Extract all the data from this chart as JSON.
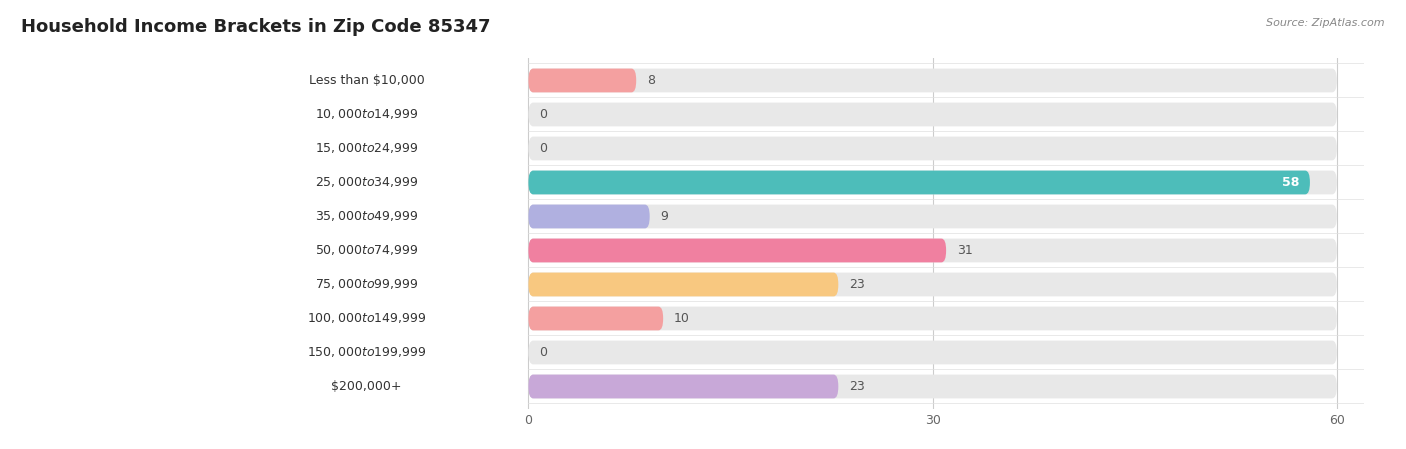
{
  "title": "Household Income Brackets in Zip Code 85347",
  "source": "Source: ZipAtlas.com",
  "categories": [
    "Less than $10,000",
    "$10,000 to $14,999",
    "$15,000 to $24,999",
    "$25,000 to $34,999",
    "$35,000 to $49,999",
    "$50,000 to $74,999",
    "$75,000 to $99,999",
    "$100,000 to $149,999",
    "$150,000 to $199,999",
    "$200,000+"
  ],
  "values": [
    8,
    0,
    0,
    58,
    9,
    31,
    23,
    10,
    0,
    23
  ],
  "bar_colors": [
    "#F4A0A0",
    "#A8C4E0",
    "#C8A8D8",
    "#4DBDBA",
    "#B0B0E0",
    "#F080A0",
    "#F8C880",
    "#F4A0A0",
    "#A8C4E0",
    "#C8A8D8"
  ],
  "xlim": [
    0,
    60
  ],
  "xticks": [
    0,
    30,
    60
  ],
  "bg_color": "#f0f0f0",
  "row_bg_color": "#e8e8e8",
  "title_fontsize": 13,
  "label_fontsize": 9,
  "value_fontsize": 9,
  "value_inside_color": "#ffffff",
  "value_outside_color": "#555555"
}
